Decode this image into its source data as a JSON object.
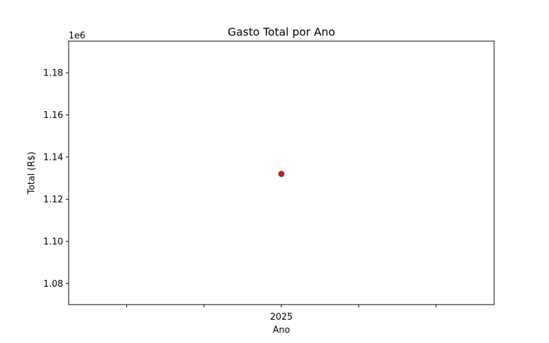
{
  "chart_data": {
    "type": "scatter",
    "title": "Gasto Total por Ano",
    "xlabel": "Ano",
    "ylabel": "Total (R$)",
    "y_scale_label": "1e6",
    "x_tick_labels": [
      "2025"
    ],
    "y_tick_labels": [
      "1.08",
      "1.10",
      "1.12",
      "1.14",
      "1.16",
      "1.18"
    ],
    "ylim": [
      1.07,
      1.195
    ],
    "grid": false,
    "points": [
      {
        "x": 2025,
        "y": 1.132
      }
    ],
    "marker_color": "#a52a2a"
  }
}
